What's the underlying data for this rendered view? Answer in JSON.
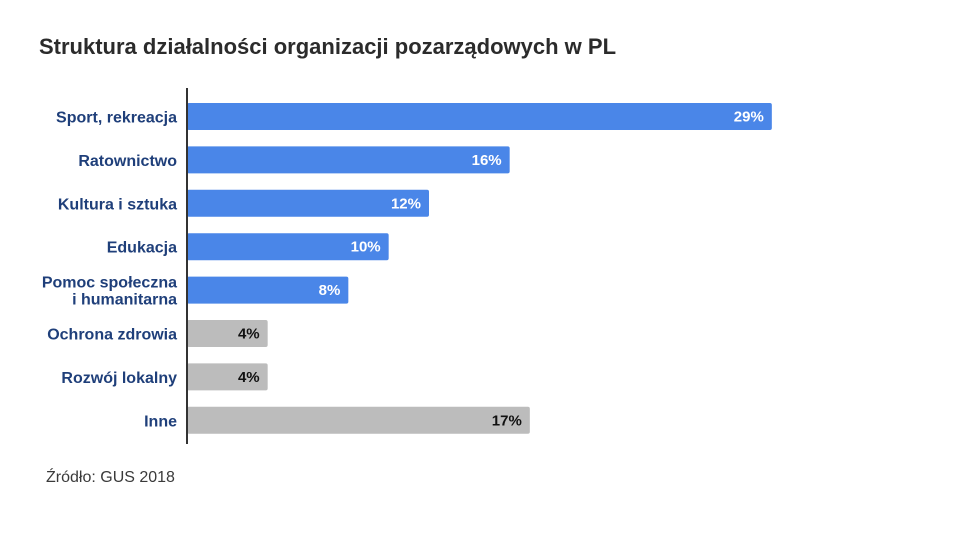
{
  "title": "Struktura działalności organizacji pozarządowych w PL",
  "source": "Źródło: GUS 2018",
  "colors": {
    "highlight": "#4a86e8",
    "other": "#bcbcbc",
    "axis": "#333333",
    "label": "#1f3f7a"
  },
  "chart_data": {
    "type": "bar",
    "orientation": "horizontal",
    "categories": [
      "Sport, rekreacja",
      "Ratownictwo",
      "Kultura i sztuka",
      "Edukacja",
      "Pomoc społeczna i humanitarna",
      "Ochrona zdrowia",
      "Rozwój lokalny",
      "Inne"
    ],
    "category_lines": [
      [
        "Sport, rekreacja"
      ],
      [
        "Ratownictwo"
      ],
      [
        "Kultura i sztuka"
      ],
      [
        "Edukacja"
      ],
      [
        "Pomoc społeczna",
        "i humanitarna"
      ],
      [
        "Ochrona zdrowia"
      ],
      [
        "Rozwój lokalny"
      ],
      [
        "Inne"
      ]
    ],
    "values": [
      29,
      16,
      12,
      10,
      8,
      4,
      4,
      17
    ],
    "value_labels": [
      "29%",
      "16%",
      "12%",
      "10%",
      "8%",
      "4%",
      "4%",
      "17%"
    ],
    "highlighted": [
      true,
      true,
      true,
      true,
      true,
      false,
      false,
      false
    ],
    "xlim": [
      0,
      30
    ],
    "grid": false,
    "title": "Struktura działalności organizacji pozarządowych w PL"
  }
}
